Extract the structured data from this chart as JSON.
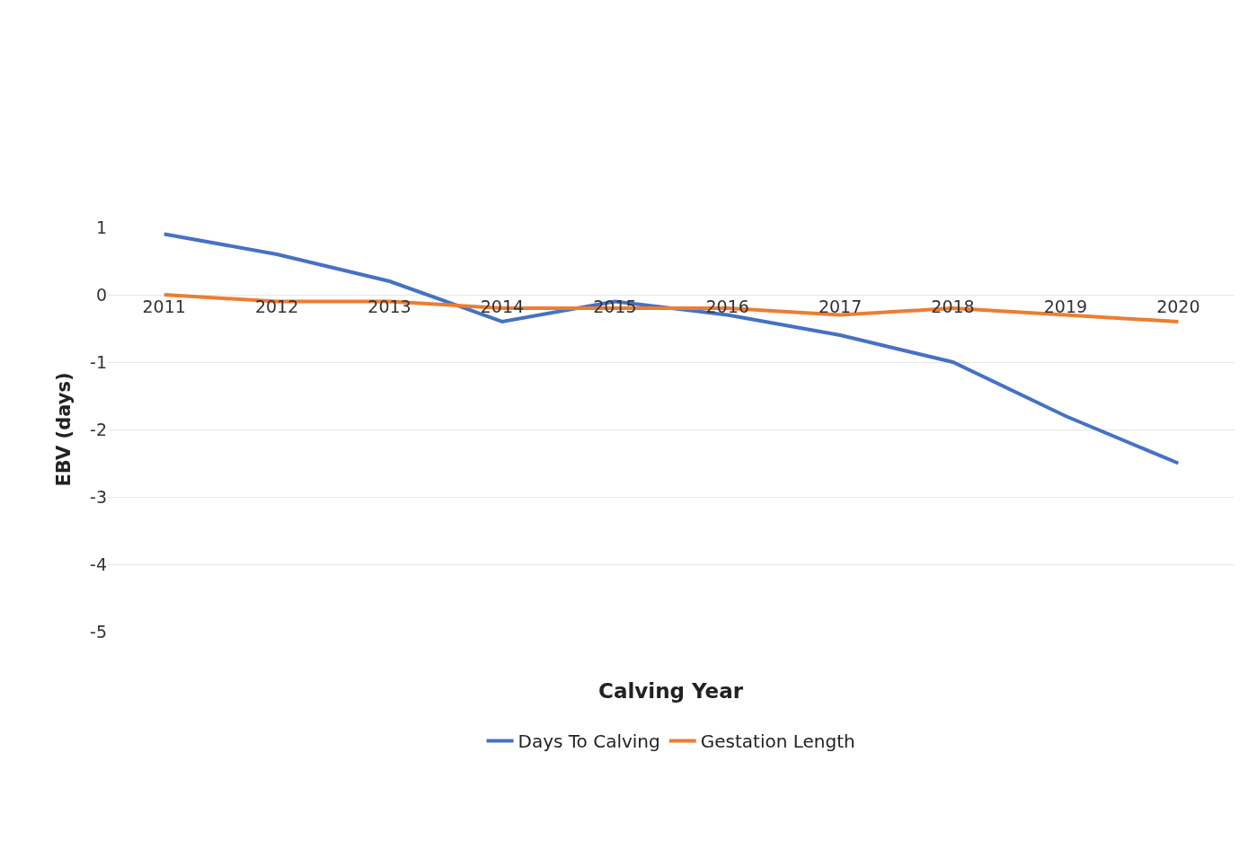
{
  "chart_data": {
    "type": "line",
    "xlabel": "Calving Year",
    "ylabel": "EBV (days)",
    "categories": [
      "2011",
      "2012",
      "2013",
      "2014",
      "2015",
      "2016",
      "2017",
      "2018",
      "2019",
      "2020"
    ],
    "series": [
      {
        "name": "Days To Calving",
        "color": "#4472c4",
        "values": [
          0.9,
          0.6,
          0.2,
          -0.4,
          -0.1,
          -0.3,
          -0.6,
          -1.0,
          -1.8,
          -2.5
        ]
      },
      {
        "name": "Gestation Length",
        "color": "#ed7d31",
        "values": [
          0,
          -0.1,
          -0.1,
          -0.2,
          -0.2,
          -0.2,
          -0.3,
          -0.2,
          -0.3,
          -0.4
        ]
      }
    ],
    "ylim": [
      -5,
      1
    ],
    "yticks": [
      1,
      0,
      -1,
      -2,
      -3,
      -4,
      -5
    ],
    "grid": "y",
    "legend": "bottom"
  }
}
